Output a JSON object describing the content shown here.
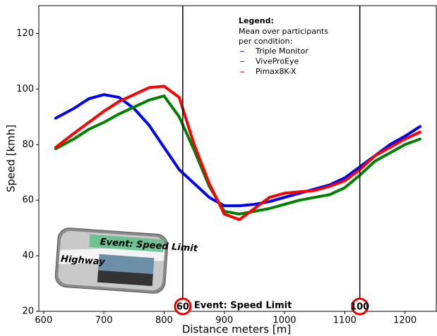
{
  "chart_data": {
    "type": "line",
    "x_label": "Distance meters [m]",
    "y_label": "Speed [kmh]",
    "x": [
      620,
      650,
      675,
      700,
      725,
      750,
      775,
      800,
      825,
      850,
      875,
      900,
      925,
      950,
      975,
      1000,
      1025,
      1050,
      1075,
      1100,
      1125,
      1150,
      1175,
      1200,
      1225
    ],
    "series": [
      {
        "name": "Triple Monitor",
        "color": "#0000ff",
        "values": [
          89.5,
          93,
          96.5,
          98,
          97,
          93,
          87,
          79,
          71,
          66,
          61,
          58,
          58,
          58.5,
          59.5,
          61,
          62.5,
          64,
          65.5,
          68,
          72,
          76,
          80,
          83,
          86.5
        ]
      },
      {
        "name": "ViveProEye",
        "color": "#008000",
        "values": [
          78.5,
          82,
          85.5,
          88,
          91,
          93.5,
          96,
          97.5,
          90,
          78,
          65,
          56,
          55,
          56,
          57,
          58.5,
          60,
          61,
          62,
          64.5,
          69,
          74,
          77,
          80,
          82
        ]
      },
      {
        "name": "Pimax8K-X",
        "color": "#ff0000",
        "values": [
          79,
          84,
          88,
          92,
          95.5,
          98,
          100.5,
          101,
          97,
          80,
          66,
          55,
          53,
          57,
          61,
          62.5,
          63,
          63.5,
          65,
          67,
          71,
          76,
          79,
          82,
          84.5
        ]
      }
    ],
    "legend_title": "Legend:",
    "legend_subtitle": [
      "Mean over participants",
      "per condition:"
    ],
    "xlim": [
      592,
      1252
    ],
    "ylim": [
      20,
      130
    ],
    "xticks": [
      600,
      700,
      800,
      900,
      1000,
      1100,
      1200
    ],
    "yticks": [
      20,
      40,
      60,
      80,
      100,
      120
    ],
    "events": [
      {
        "x": 831,
        "sign": "60",
        "label": "Event: Speed Limit"
      },
      {
        "x": 1125,
        "sign": "100"
      }
    ],
    "inset": {
      "title": "Event: Speed Limit",
      "road": "Highway"
    }
  }
}
